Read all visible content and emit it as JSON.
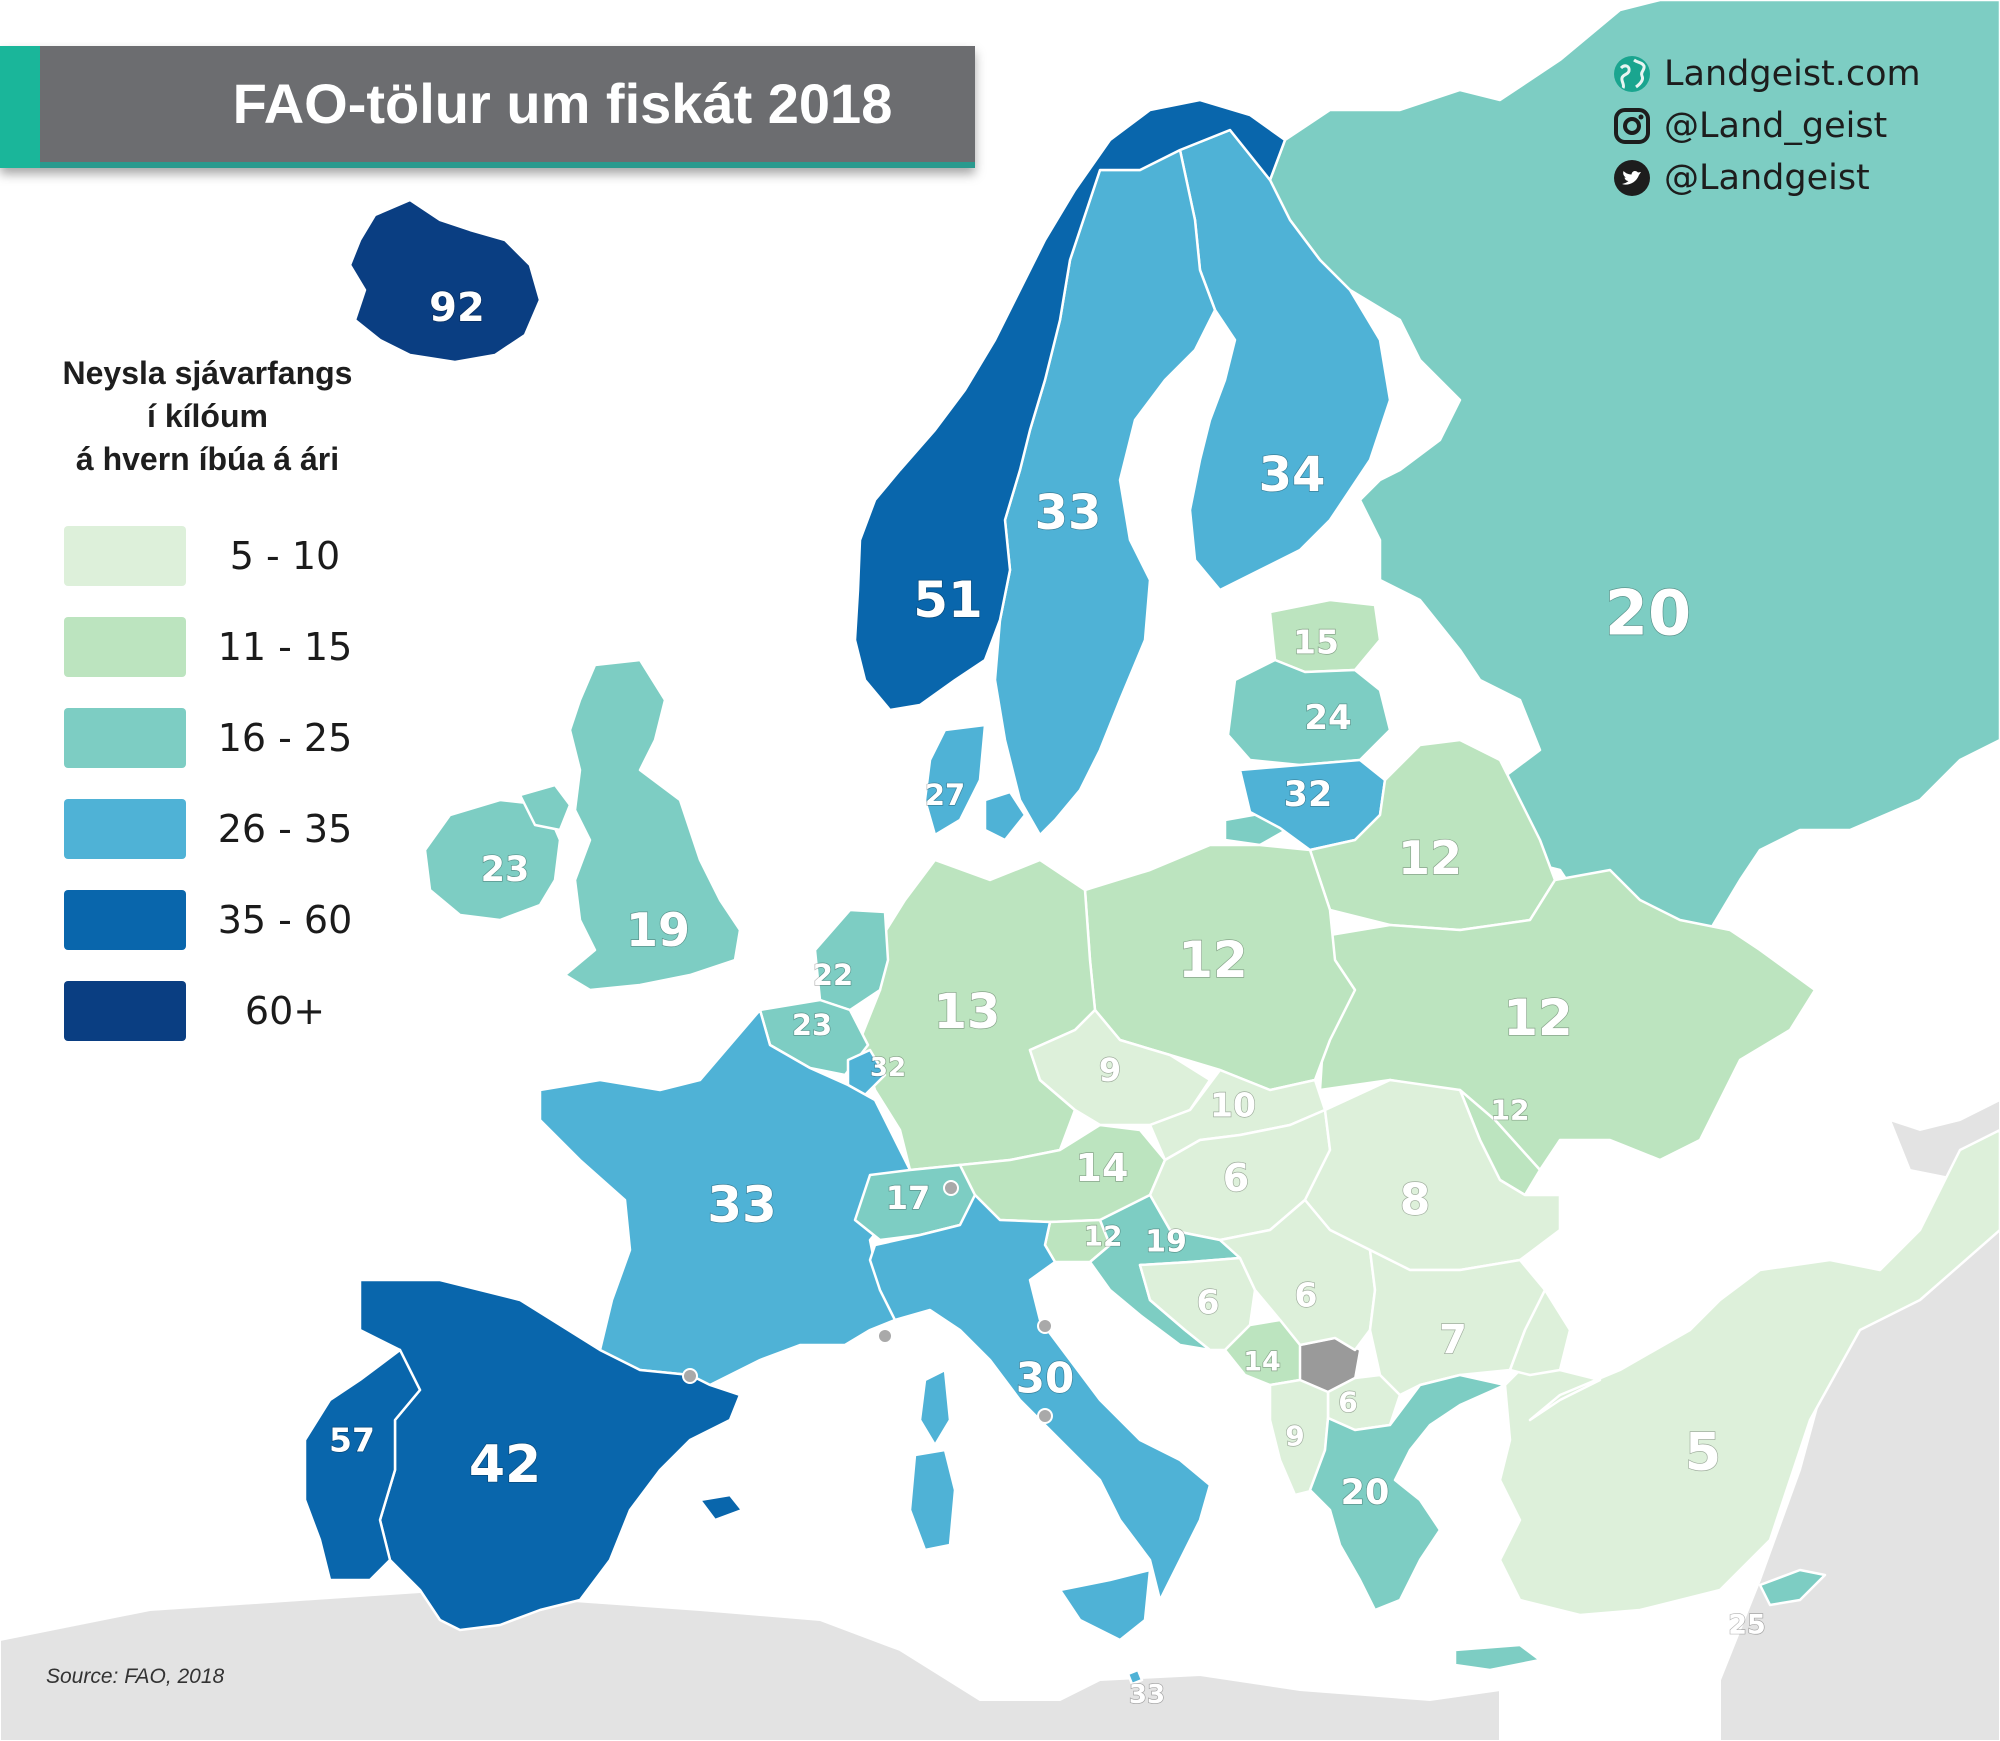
{
  "title": "FAO-tölur um fiskát 2018",
  "brand": {
    "site": "Landgeist.com",
    "instagram": "@Land_geist",
    "twitter": "@Landgeist",
    "icons": [
      "globe-icon",
      "instagram-icon",
      "twitter-icon"
    ]
  },
  "legend": {
    "title_lines": [
      "Neysla sjávarfangs",
      "í kílóum",
      "á hvern íbúa á ári"
    ],
    "bins": [
      {
        "label": "5 - 10",
        "color": "#ddf0da"
      },
      {
        "label": "11 - 15",
        "color": "#bce4bf"
      },
      {
        "label": "16 - 25",
        "color": "#7dcdc3"
      },
      {
        "label": "26 - 35",
        "color": "#4fb2d6"
      },
      {
        "label": "35 - 60",
        "color": "#0966ac"
      },
      {
        "label": "60+",
        "color": "#0a3e82"
      }
    ]
  },
  "source": "Source: FAO, 2018",
  "map_data": {
    "unit": "kg per capita per year",
    "regions": [
      {
        "id": "iceland",
        "label": "92",
        "value": 92
      },
      {
        "id": "norway",
        "label": "51",
        "value": 51
      },
      {
        "id": "sweden",
        "label": "33",
        "value": 33
      },
      {
        "id": "finland",
        "label": "34",
        "value": 34
      },
      {
        "id": "russia",
        "label": "20",
        "value": 20
      },
      {
        "id": "estonia",
        "label": "15",
        "value": 15
      },
      {
        "id": "latvia",
        "label": "24",
        "value": 24
      },
      {
        "id": "lithuania",
        "label": "32",
        "value": 32
      },
      {
        "id": "denmark",
        "label": "27",
        "value": 27
      },
      {
        "id": "ireland",
        "label": "23",
        "value": 23
      },
      {
        "id": "uk",
        "label": "19",
        "value": 19
      },
      {
        "id": "netherlands",
        "label": "22",
        "value": 22
      },
      {
        "id": "belgium",
        "label": "23",
        "value": 23
      },
      {
        "id": "luxembourg",
        "label": "32",
        "value": 32
      },
      {
        "id": "germany",
        "label": "13",
        "value": 13
      },
      {
        "id": "poland",
        "label": "12",
        "value": 12
      },
      {
        "id": "belarus",
        "label": "12",
        "value": 12
      },
      {
        "id": "ukraine",
        "label": "12",
        "value": 12
      },
      {
        "id": "moldova",
        "label": "12",
        "value": 12
      },
      {
        "id": "czechia",
        "label": "9",
        "value": 9
      },
      {
        "id": "slovakia",
        "label": "10",
        "value": 10
      },
      {
        "id": "austria",
        "label": "14",
        "value": 14
      },
      {
        "id": "hungary",
        "label": "6",
        "value": 6
      },
      {
        "id": "romania",
        "label": "8",
        "value": 8
      },
      {
        "id": "france",
        "label": "33",
        "value": 33
      },
      {
        "id": "switzerland",
        "label": "17",
        "value": 17
      },
      {
        "id": "slovenia",
        "label": "12",
        "value": 12
      },
      {
        "id": "croatia",
        "label": "19",
        "value": 19
      },
      {
        "id": "bosnia",
        "label": "6",
        "value": 6
      },
      {
        "id": "serbia",
        "label": "6",
        "value": 6
      },
      {
        "id": "bulgaria",
        "label": "7",
        "value": 7
      },
      {
        "id": "montenegro",
        "label": "14",
        "value": 14
      },
      {
        "id": "north-macedonia",
        "label": "6",
        "value": 6
      },
      {
        "id": "albania",
        "label": "9",
        "value": 9
      },
      {
        "id": "greece",
        "label": "20",
        "value": 20
      },
      {
        "id": "turkey",
        "label": "5",
        "value": 5
      },
      {
        "id": "italy",
        "label": "30",
        "value": 30
      },
      {
        "id": "spain",
        "label": "42",
        "value": 42
      },
      {
        "id": "portugal",
        "label": "57",
        "value": 57
      },
      {
        "id": "cyprus",
        "label": "25",
        "value": 25
      },
      {
        "id": "malta",
        "label": "33",
        "value": 33
      }
    ]
  }
}
